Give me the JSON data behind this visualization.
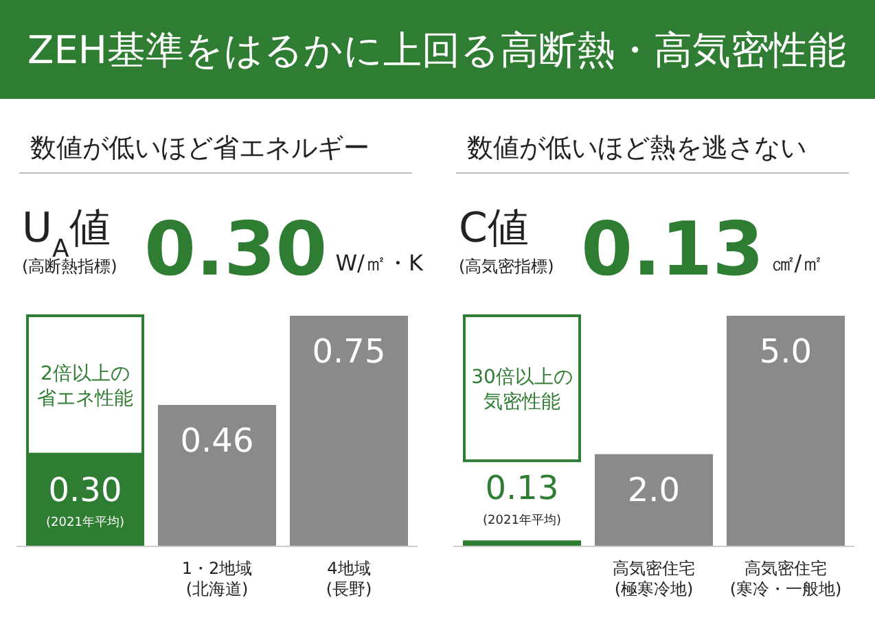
{
  "chart_data": [
    {
      "type": "bar",
      "title": "数値が低いほど省エネルギー",
      "categories": [
        null,
        "1・2地域\n(北海道)",
        "4地域\n(長野)"
      ],
      "values": [
        0.3,
        0.46,
        0.75
      ],
      "value_labels": [
        "0.30",
        "0.46",
        "0.75"
      ],
      "colors": [
        "#2f7d32",
        "#8a8a8a",
        "#8a8a8a"
      ],
      "annotations": [
        "U$_{A}$値",
        "(高断熱指標)",
        "0.30",
        "W/㎡・K",
        "2倍以上の省エネ性能",
        "(2021年平均)",
        "ZEH基準をはるかに上回る高断熱・高気密性能"
      ]
    },
    {
      "type": "bar",
      "title": "数値が低いほど熱を逃さない",
      "categories": [
        null,
        "高気密住宅\n(極寒冷地)",
        "高気密住宅\n(寒冷・一般地)"
      ],
      "values": [
        0.13,
        2.0,
        5.0
      ],
      "value_labels": [
        "0.13",
        "2.0",
        "5.0"
      ],
      "colors": [
        "#2f7d32",
        "#8a8a8a",
        "#8a8a8a"
      ],
      "annotations": [
        "C値",
        "(高気密指標)",
        "0.13",
        "㎠/㎡",
        "30倍以上の気密性能",
        "(2021年平均)"
      ]
    }
  ]
}
